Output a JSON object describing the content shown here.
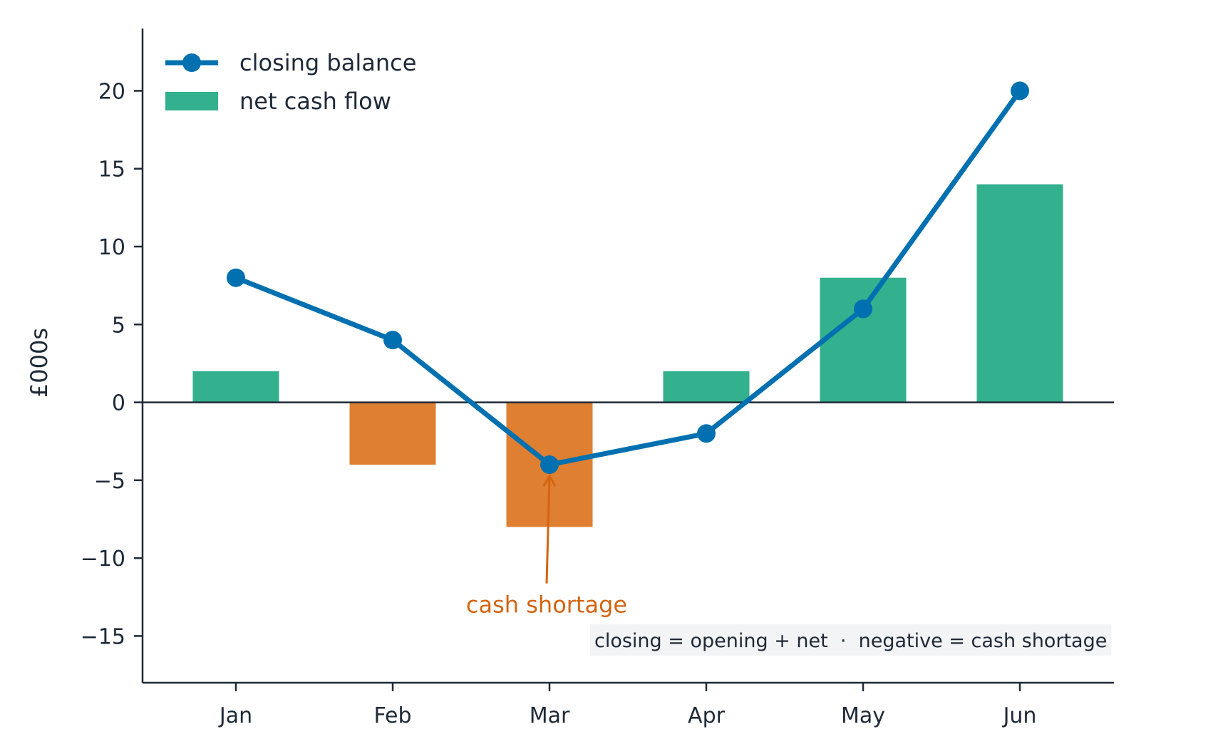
{
  "chart_data": {
    "type": "bar",
    "categories": [
      "Jan",
      "Feb",
      "Mar",
      "Apr",
      "May",
      "Jun"
    ],
    "series": [
      {
        "name": "net cash flow",
        "type": "bar",
        "values": [
          2,
          -4,
          -8,
          2,
          8,
          14
        ]
      },
      {
        "name": "closing balance",
        "type": "line",
        "values": [
          8,
          4,
          -4,
          -2,
          6,
          20
        ]
      }
    ],
    "ylabel": "£000s",
    "xlabel": "",
    "ylim": [
      -18,
      24
    ],
    "yticks": [
      {
        "value": 20,
        "label": "20"
      },
      {
        "value": 15,
        "label": "15"
      },
      {
        "value": 10,
        "label": "10"
      },
      {
        "value": 5,
        "label": "5"
      },
      {
        "value": 0,
        "label": "0"
      },
      {
        "value": -5,
        "label": "−5"
      },
      {
        "value": -10,
        "label": "−10"
      },
      {
        "value": -15,
        "label": "−15"
      }
    ],
    "grid": false,
    "legend": {
      "placement": "top-left",
      "entries": [
        "closing balance",
        "net cash flow"
      ]
    },
    "annotations": [
      {
        "text": "cash shortage",
        "target_category": "Mar",
        "target_value": -4,
        "text_value": -13
      }
    ],
    "note": "closing = opening + net  ·  negative = cash shortage"
  },
  "colors": {
    "positive_bar": "#33b08e",
    "negative_bar": "#df7f31",
    "line": "#0070b0",
    "annotation": "#d46410",
    "axis": "#1f2937",
    "note_background": "#f3f4f6"
  }
}
